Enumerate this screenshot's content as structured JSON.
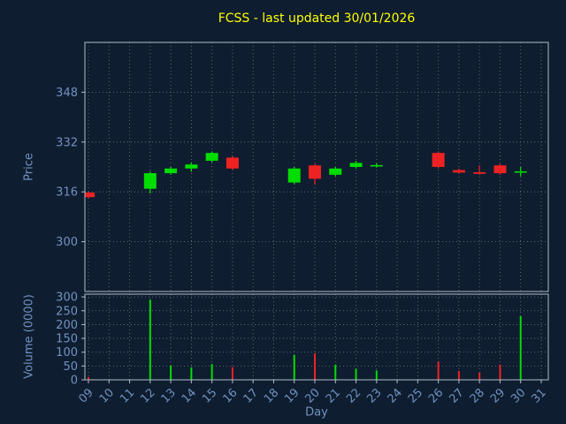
{
  "title": "FCSS - last updated 30/01/2026",
  "colors": {
    "background": "#0e1d30",
    "title": "#ffff00",
    "tick": "#7292c0",
    "axis_label": "#7292c0",
    "spine": "#b0bcc8",
    "grid": "#787878",
    "up": "#00dd00",
    "down": "#ee2222"
  },
  "chart_data": [
    {
      "type": "candlestick",
      "title": "FCSS - last updated 30/01/2026",
      "xlabel": "Day",
      "ylabel": "Price",
      "x_range": [
        9,
        31
      ],
      "x_ticks": [
        "09",
        "10",
        "11",
        "12",
        "13",
        "14",
        "15",
        "16",
        "17",
        "18",
        "19",
        "20",
        "21",
        "22",
        "23",
        "24",
        "25",
        "26",
        "27",
        "28",
        "29",
        "30",
        "31"
      ],
      "y_ticks": [
        300,
        316,
        332,
        348
      ],
      "ylim": [
        284,
        364
      ],
      "grid": true,
      "up_color": "#00dd00",
      "down_color": "#ee2222",
      "candles": [
        {
          "day": 9,
          "open": 315.8,
          "high": 316.0,
          "low": 314.0,
          "close": 314.3
        },
        {
          "day": 12,
          "open": 317.0,
          "high": 322.5,
          "low": 315.5,
          "close": 322.0
        },
        {
          "day": 13,
          "open": 322.0,
          "high": 324.0,
          "low": 321.5,
          "close": 323.5
        },
        {
          "day": 14,
          "open": 323.5,
          "high": 325.5,
          "low": 322.5,
          "close": 324.8
        },
        {
          "day": 15,
          "open": 326.0,
          "high": 329.0,
          "low": 325.5,
          "close": 328.5
        },
        {
          "day": 16,
          "open": 327.0,
          "high": 327.5,
          "low": 323.0,
          "close": 323.5
        },
        {
          "day": 19,
          "open": 319.0,
          "high": 324.0,
          "low": 318.5,
          "close": 323.5
        },
        {
          "day": 20,
          "open": 324.5,
          "high": 325.0,
          "low": 318.3,
          "close": 320.2
        },
        {
          "day": 21,
          "open": 321.5,
          "high": 324.0,
          "low": 321.0,
          "close": 323.5
        },
        {
          "day": 22,
          "open": 324.0,
          "high": 326.0,
          "low": 323.5,
          "close": 325.3
        },
        {
          "day": 23,
          "open": 324.4,
          "high": 325.2,
          "low": 323.8,
          "close": 324.6
        },
        {
          "day": 26,
          "open": 328.5,
          "high": 329.0,
          "low": 323.5,
          "close": 324.0
        },
        {
          "day": 27,
          "open": 323.0,
          "high": 323.5,
          "low": 322.0,
          "close": 322.2
        },
        {
          "day": 28,
          "open": 322.3,
          "high": 324.5,
          "low": 321.5,
          "close": 321.8
        },
        {
          "day": 29,
          "open": 324.5,
          "high": 325.0,
          "low": 321.5,
          "close": 322.0
        },
        {
          "day": 30,
          "open": 322.3,
          "high": 324.0,
          "low": 321.0,
          "close": 322.6
        }
      ]
    },
    {
      "type": "bar",
      "title": "",
      "xlabel": "Day",
      "ylabel": "Volume (0000)",
      "y_ticks": [
        0,
        50,
        100,
        150,
        200,
        250,
        300
      ],
      "ylim": [
        0,
        310
      ],
      "grid": true,
      "bars": [
        {
          "day": 9,
          "value": 10,
          "direction": "down"
        },
        {
          "day": 12,
          "value": 290,
          "direction": "up"
        },
        {
          "day": 13,
          "value": 52,
          "direction": "up"
        },
        {
          "day": 14,
          "value": 45,
          "direction": "up"
        },
        {
          "day": 15,
          "value": 57,
          "direction": "up"
        },
        {
          "day": 16,
          "value": 46,
          "direction": "down"
        },
        {
          "day": 19,
          "value": 90,
          "direction": "up"
        },
        {
          "day": 20,
          "value": 96,
          "direction": "down"
        },
        {
          "day": 21,
          "value": 55,
          "direction": "up"
        },
        {
          "day": 22,
          "value": 40,
          "direction": "up"
        },
        {
          "day": 23,
          "value": 34,
          "direction": "up"
        },
        {
          "day": 26,
          "value": 66,
          "direction": "down"
        },
        {
          "day": 27,
          "value": 32,
          "direction": "down"
        },
        {
          "day": 28,
          "value": 26,
          "direction": "down"
        },
        {
          "day": 29,
          "value": 55,
          "direction": "down"
        },
        {
          "day": 30,
          "value": 230,
          "direction": "up"
        }
      ]
    }
  ]
}
